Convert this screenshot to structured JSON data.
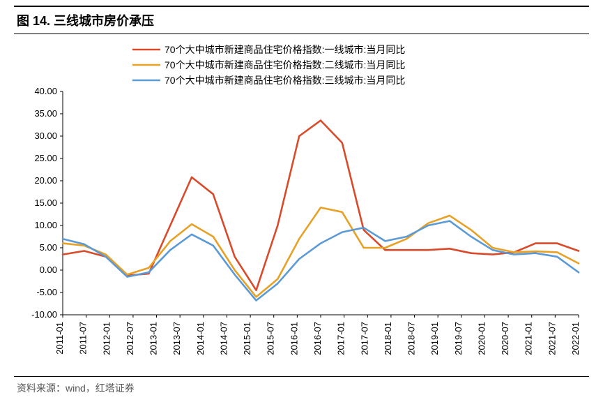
{
  "figure": {
    "title": "图 14. 三线城市房价承压",
    "source": "资料来源：wind，红塔证券",
    "chart": {
      "type": "line",
      "background_color": "#ffffff",
      "plot_border_color": "#000000",
      "plot_border_sides": "bottom",
      "y_axis": {
        "min": -10.0,
        "max": 40.0,
        "step": 5.0,
        "tick_labels": [
          "-10.00",
          "-5.00",
          "0.00",
          "5.00",
          "10.00",
          "15.00",
          "20.00",
          "25.00",
          "30.00",
          "35.00",
          "40.00"
        ],
        "tick_values": [
          -10,
          -5,
          0,
          5,
          10,
          15,
          20,
          25,
          30,
          35,
          40
        ],
        "label_fontsize": 13,
        "label_color": "#000000"
      },
      "x_axis": {
        "categories": [
          "2011-01",
          "2011-07",
          "2012-01",
          "2012-07",
          "2013-01",
          "2013-07",
          "2014-01",
          "2014-07",
          "2015-01",
          "2015-07",
          "2016-01",
          "2016-07",
          "2017-01",
          "2017-07",
          "2018-01",
          "2018-07",
          "2019-01",
          "2019-07",
          "2020-01",
          "2020-07",
          "2021-01",
          "2021-07",
          "2022-01"
        ],
        "label_rotation": -90,
        "label_fontsize": 13,
        "label_color": "#000000"
      },
      "legend": {
        "position": "top-center",
        "fontsize": 14,
        "items": [
          {
            "label": "70个大中城市新建商品住宅价格指数:一线城市:当月同比",
            "color": "#d94a2b"
          },
          {
            "label": "70个大中城市新建商品住宅价格指数:二线城市:当月同比",
            "color": "#e6a126"
          },
          {
            "label": "70个大中城市新建商品住宅价格指数:三线城市:当月同比",
            "color": "#5b9ad5"
          }
        ]
      },
      "series": [
        {
          "name": "一线",
          "color": "#d94a2b",
          "line_width": 2.6,
          "values": [
            3.5,
            4.3,
            3.0,
            -1.2,
            -0.8,
            10.0,
            20.8,
            17.0,
            3.0,
            -4.5,
            10.0,
            30.0,
            33.5,
            28.5,
            9.0,
            4.5,
            4.5,
            4.5,
            4.8,
            3.8,
            3.5,
            4.0,
            6.0,
            6.0,
            4.3
          ]
        },
        {
          "name": "二线",
          "color": "#e6a126",
          "line_width": 2.6,
          "values": [
            6.0,
            5.5,
            3.5,
            -1.0,
            0.5,
            6.5,
            10.3,
            7.5,
            0.0,
            -6.0,
            -2.0,
            7.0,
            14.0,
            13.0,
            5.0,
            5.0,
            7.0,
            10.5,
            12.2,
            9.0,
            5.0,
            4.0,
            4.2,
            4.0,
            1.5
          ]
        },
        {
          "name": "三线",
          "color": "#5b9ad5",
          "line_width": 2.6,
          "values": [
            7.0,
            5.8,
            3.0,
            -1.5,
            -0.5,
            4.5,
            8.0,
            5.5,
            -1.0,
            -6.8,
            -3.0,
            2.5,
            6.0,
            8.5,
            9.5,
            6.5,
            7.5,
            10.0,
            11.0,
            7.5,
            4.5,
            3.5,
            3.8,
            3.0,
            -0.5
          ]
        }
      ],
      "x_positions_count": 25
    }
  }
}
